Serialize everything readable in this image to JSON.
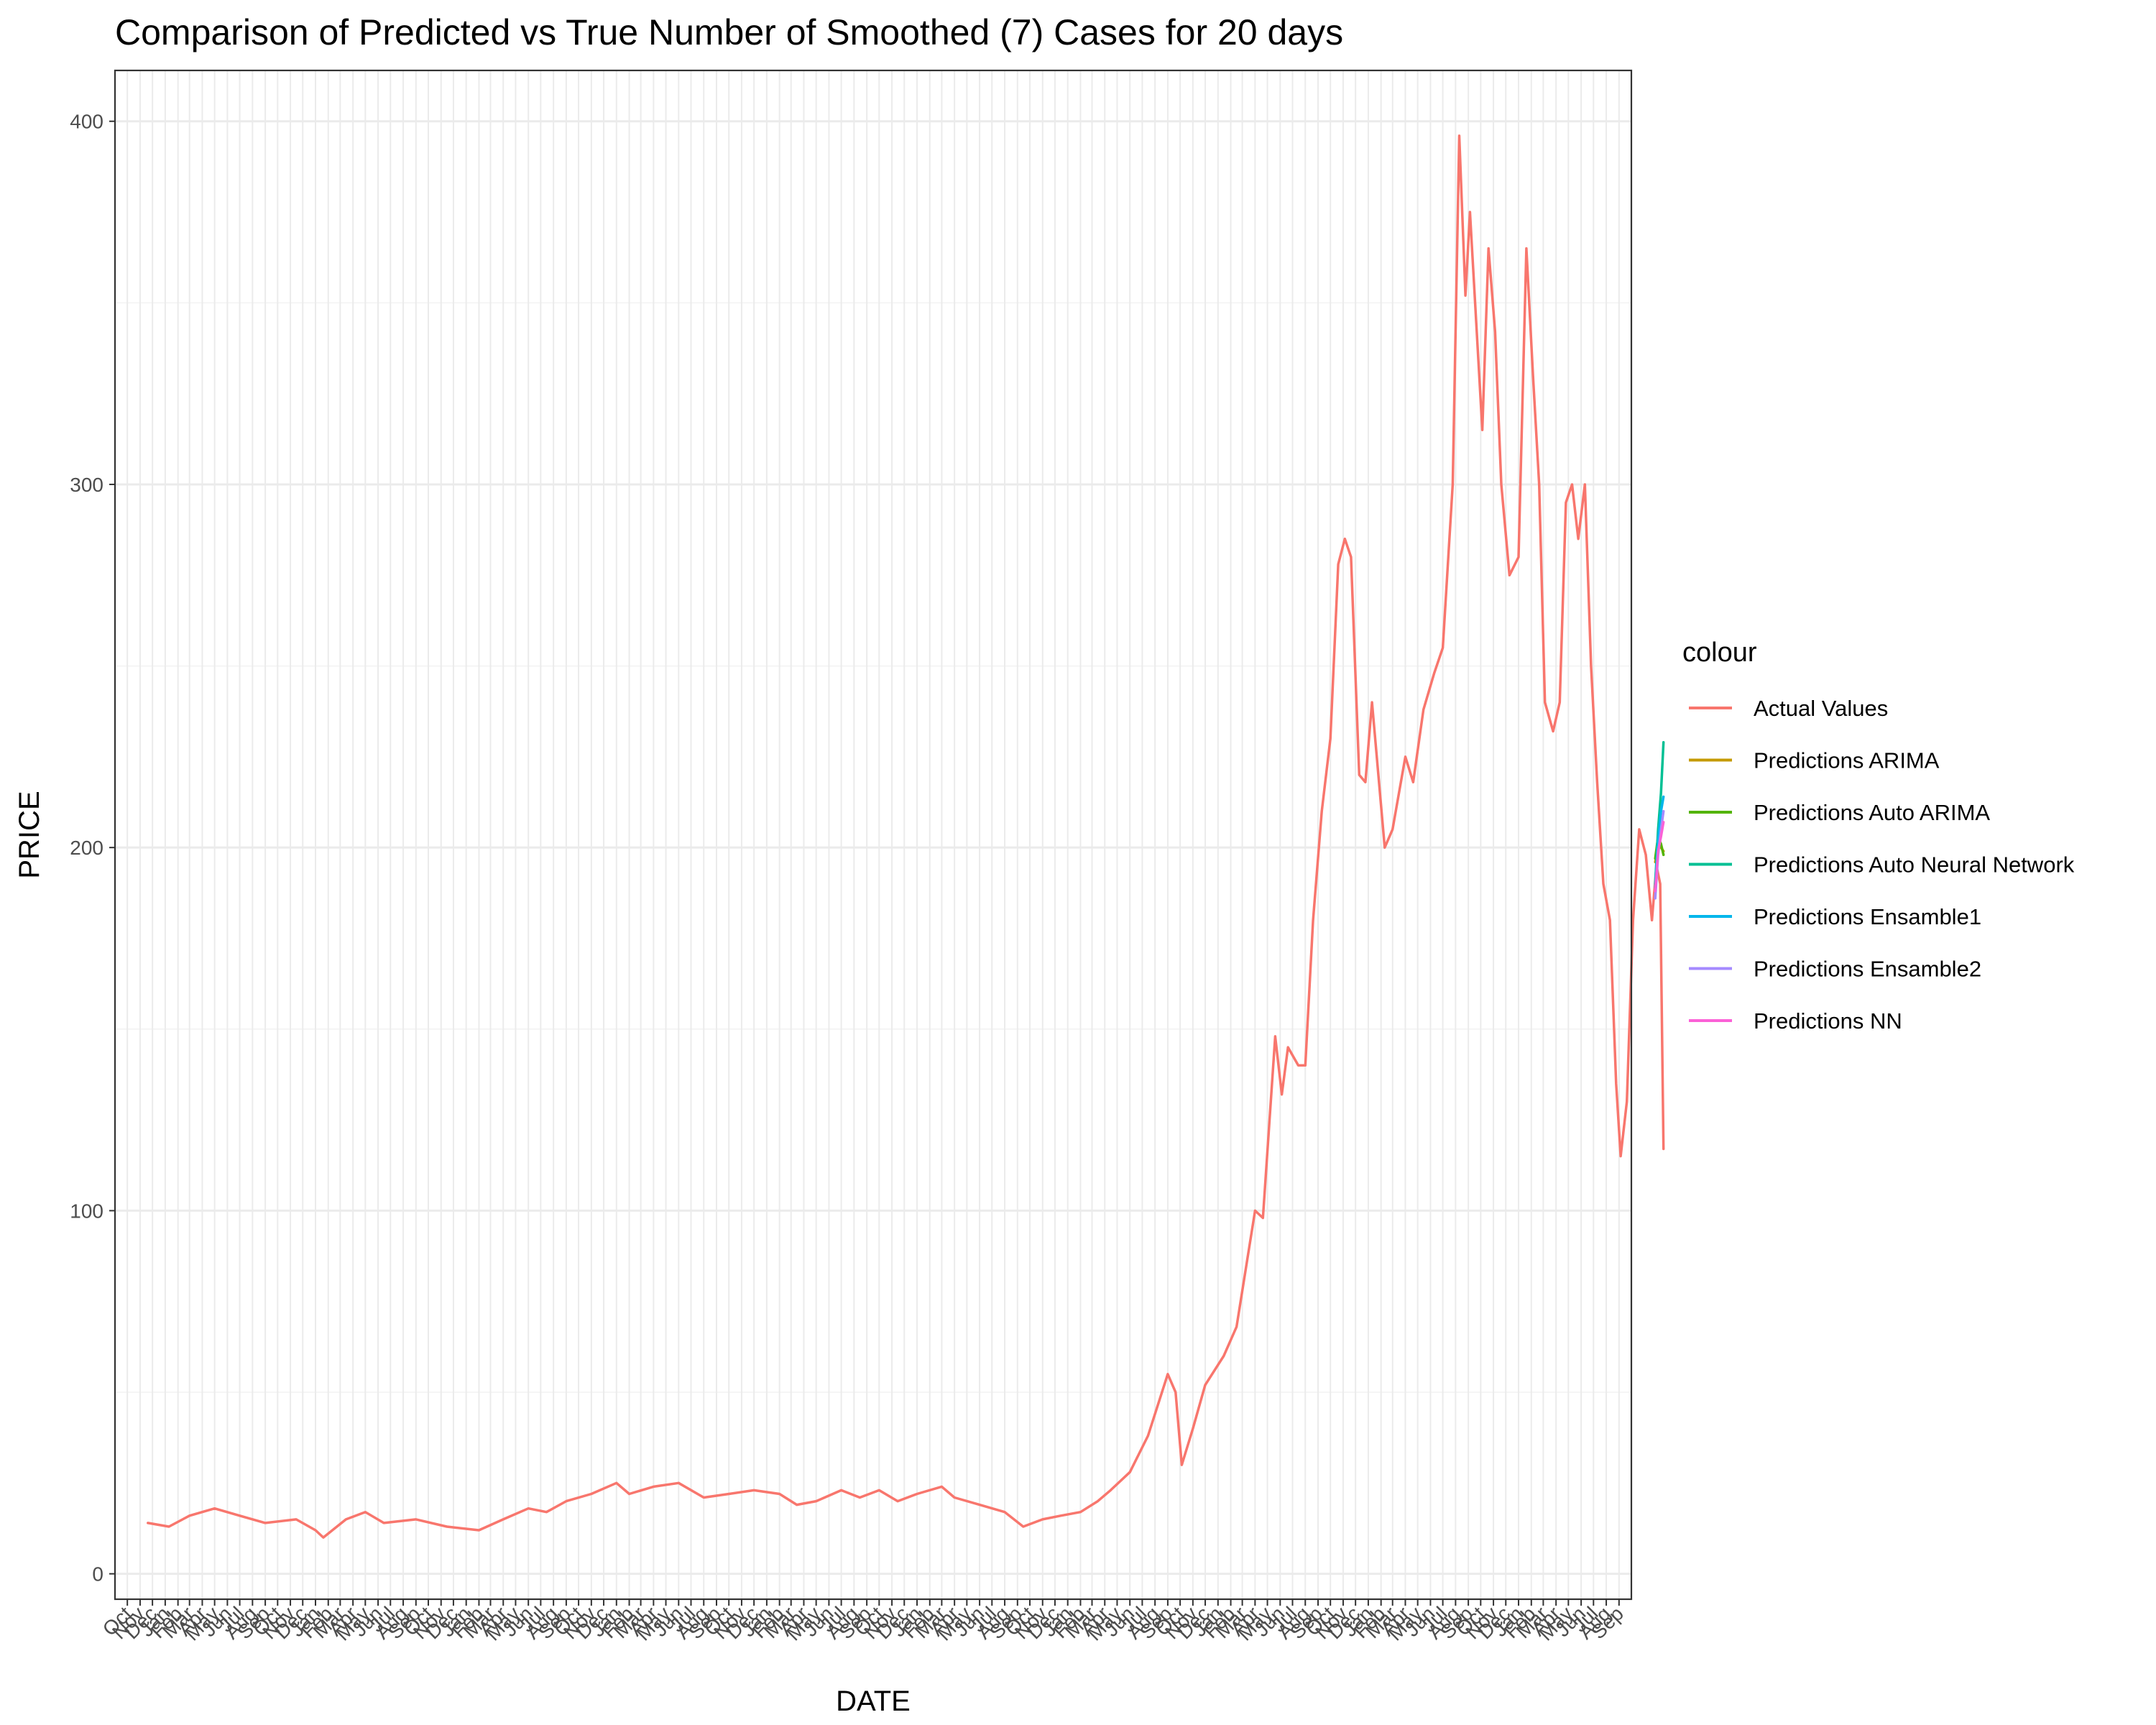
{
  "chart_data": {
    "type": "line",
    "title": "Comparison of Predicted vs True Number of Smoothed (7) Cases for 20 days",
    "xlabel": "DATE",
    "ylabel": "PRICE",
    "ylim": [
      -7,
      414
    ],
    "yticks": [
      0,
      100,
      200,
      300,
      400
    ],
    "grid": true,
    "xlim": [
      "2014-09-01",
      "2024-10-01"
    ],
    "x_tick_labels": [
      "Oct",
      "Nov",
      "Dec",
      "Jan",
      "Feb",
      "Mar",
      "Apr",
      "May",
      "Jun",
      "Jul",
      "Aug",
      "Sep",
      "Oct",
      "Nov",
      "Dec",
      "Jan",
      "Feb",
      "Mar",
      "Apr",
      "May",
      "Jun",
      "Jul",
      "Aug",
      "Sep",
      "Oct",
      "Nov",
      "Dec",
      "Jan",
      "Feb",
      "Mar",
      "Apr",
      "May",
      "Jun",
      "Jul",
      "Aug",
      "Sep",
      "Oct",
      "Nov",
      "Dec",
      "Jan",
      "Feb",
      "Mar",
      "Apr",
      "May",
      "Jun",
      "Jul",
      "Aug",
      "Sep",
      "Oct",
      "Nov",
      "Dec",
      "Jan",
      "Feb",
      "Mar",
      "Apr",
      "May",
      "Jun",
      "Jul",
      "Aug",
      "Sep",
      "Oct",
      "Nov",
      "Dec",
      "Jan",
      "Feb",
      "Mar",
      "Apr",
      "May",
      "Jun",
      "Jul",
      "Aug",
      "Sep",
      "Oct",
      "Nov",
      "Dec",
      "Jan",
      "Feb",
      "Mar",
      "Apr",
      "May",
      "Jun",
      "Jul",
      "Aug",
      "Sep",
      "Oct",
      "Nov",
      "Dec",
      "Jan",
      "Feb",
      "Mar",
      "Apr",
      "May",
      "Jun",
      "Jul",
      "Aug",
      "Sep",
      "Oct",
      "Nov",
      "Dec",
      "Jan",
      "Feb",
      "Mar",
      "Apr",
      "May",
      "Jun",
      "Jul",
      "Aug",
      "Sep",
      "Oct",
      "Nov",
      "Dec",
      "Jan",
      "Feb",
      "Mar",
      "Apr",
      "May",
      "Jun",
      "Jul",
      "Aug",
      "Sep"
    ],
    "legend": {
      "title": "colour",
      "position": "right",
      "entries": [
        "Actual Values",
        "Predictions ARIMA",
        "Predictions Auto ARIMA",
        "Predictions Auto Neural Network",
        "Predictions Ensamble1",
        "Predictions Ensamble2",
        "Predictions NN"
      ]
    },
    "series": [
      {
        "name": "Actual Values",
        "color": "#F8766D",
        "points": [
          [
            "2014-11-20",
            14
          ],
          [
            "2015-01-10",
            13
          ],
          [
            "2015-03-01",
            16
          ],
          [
            "2015-05-01",
            18
          ],
          [
            "2015-07-01",
            16
          ],
          [
            "2015-09-01",
            14
          ],
          [
            "2015-11-15",
            15
          ],
          [
            "2016-01-01",
            12
          ],
          [
            "2016-01-20",
            10
          ],
          [
            "2016-03-15",
            15
          ],
          [
            "2016-05-01",
            17
          ],
          [
            "2016-06-15",
            14
          ],
          [
            "2016-09-01",
            15
          ],
          [
            "2016-11-15",
            13
          ],
          [
            "2017-02-01",
            12
          ],
          [
            "2017-04-01",
            15
          ],
          [
            "2017-06-01",
            18
          ],
          [
            "2017-07-15",
            17
          ],
          [
            "2017-09-01",
            20
          ],
          [
            "2017-11-01",
            22
          ],
          [
            "2018-01-01",
            25
          ],
          [
            "2018-02-01",
            22
          ],
          [
            "2018-04-01",
            24
          ],
          [
            "2018-06-01",
            25
          ],
          [
            "2018-08-01",
            21
          ],
          [
            "2018-10-01",
            22
          ],
          [
            "2018-12-01",
            23
          ],
          [
            "2019-02-01",
            22
          ],
          [
            "2019-03-15",
            19
          ],
          [
            "2019-05-01",
            20
          ],
          [
            "2019-07-01",
            23
          ],
          [
            "2019-08-15",
            21
          ],
          [
            "2019-10-01",
            23
          ],
          [
            "2019-11-15",
            20
          ],
          [
            "2020-01-01",
            22
          ],
          [
            "2020-03-01",
            24
          ],
          [
            "2020-04-01",
            21
          ],
          [
            "2020-06-01",
            19
          ],
          [
            "2020-08-01",
            17
          ],
          [
            "2020-09-15",
            13
          ],
          [
            "2020-11-01",
            15
          ],
          [
            "2020-12-15",
            16
          ],
          [
            "2021-02-01",
            17
          ],
          [
            "2021-03-15",
            20
          ],
          [
            "2021-04-15",
            23
          ],
          [
            "2021-06-01",
            28
          ],
          [
            "2021-07-15",
            38
          ],
          [
            "2021-09-01",
            55
          ],
          [
            "2021-09-20",
            50
          ],
          [
            "2021-10-05",
            30
          ],
          [
            "2021-11-01",
            40
          ],
          [
            "2021-12-01",
            52
          ],
          [
            "2022-01-15",
            60
          ],
          [
            "2022-02-15",
            68
          ],
          [
            "2022-04-01",
            100
          ],
          [
            "2022-04-20",
            98
          ],
          [
            "2022-05-20",
            148
          ],
          [
            "2022-06-05",
            132
          ],
          [
            "2022-06-20",
            145
          ],
          [
            "2022-07-15",
            140
          ],
          [
            "2022-08-01",
            140
          ],
          [
            "2022-08-20",
            180
          ],
          [
            "2022-09-10",
            210
          ],
          [
            "2022-10-01",
            230
          ],
          [
            "2022-10-20",
            278
          ],
          [
            "2022-11-05",
            285
          ],
          [
            "2022-11-20",
            280
          ],
          [
            "2022-12-10",
            220
          ],
          [
            "2022-12-25",
            218
          ],
          [
            "2023-01-10",
            240
          ],
          [
            "2023-02-10",
            200
          ],
          [
            "2023-03-01",
            205
          ],
          [
            "2023-04-01",
            225
          ],
          [
            "2023-04-20",
            218
          ],
          [
            "2023-05-15",
            238
          ],
          [
            "2023-06-10",
            248
          ],
          [
            "2023-07-01",
            255
          ],
          [
            "2023-07-25",
            300
          ],
          [
            "2023-08-10",
            396
          ],
          [
            "2023-08-25",
            352
          ],
          [
            "2023-09-05",
            375
          ],
          [
            "2023-09-20",
            345
          ],
          [
            "2023-10-05",
            315
          ],
          [
            "2023-10-20",
            365
          ],
          [
            "2023-11-05",
            342
          ],
          [
            "2023-11-20",
            300
          ],
          [
            "2023-12-10",
            275
          ],
          [
            "2024-01-01",
            280
          ],
          [
            "2024-01-20",
            365
          ],
          [
            "2024-02-05",
            330
          ],
          [
            "2024-02-20",
            300
          ],
          [
            "2024-03-05",
            240
          ],
          [
            "2024-03-25",
            232
          ],
          [
            "2024-04-10",
            240
          ],
          [
            "2024-04-25",
            295
          ],
          [
            "2024-05-10",
            300
          ],
          [
            "2024-05-25",
            285
          ],
          [
            "2024-06-10",
            300
          ],
          [
            "2024-06-25",
            250
          ],
          [
            "2024-07-10",
            218
          ],
          [
            "2024-07-25",
            190
          ],
          [
            "2024-08-10",
            180
          ],
          [
            "2024-08-25",
            135
          ],
          [
            "2024-09-05",
            115
          ],
          [
            "2024-09-20",
            130
          ],
          [
            "2024-10-05",
            180
          ],
          [
            "2024-10-20",
            205
          ],
          [
            "2024-11-05",
            198
          ],
          [
            "2024-11-20",
            180
          ],
          [
            "2024-12-01",
            195
          ],
          [
            "2024-12-10",
            190
          ],
          [
            "2024-12-18",
            117
          ]
        ]
      },
      {
        "name": "Predictions ARIMA",
        "color": "#C49A00",
        "points": [
          [
            "2024-11-28",
            196
          ],
          [
            "2024-12-05",
            201
          ],
          [
            "2024-12-12",
            200
          ],
          [
            "2024-12-18",
            199
          ]
        ]
      },
      {
        "name": "Predictions Auto ARIMA",
        "color": "#53B400",
        "points": [
          [
            "2024-11-28",
            197
          ],
          [
            "2024-12-05",
            203
          ],
          [
            "2024-12-12",
            201
          ],
          [
            "2024-12-18",
            198
          ]
        ]
      },
      {
        "name": "Predictions Auto Neural Network",
        "color": "#00C094",
        "points": [
          [
            "2024-11-28",
            190
          ],
          [
            "2024-12-05",
            205
          ],
          [
            "2024-12-12",
            215
          ],
          [
            "2024-12-18",
            229
          ]
        ]
      },
      {
        "name": "Predictions Ensamble1",
        "color": "#00B6EB",
        "points": [
          [
            "2024-11-28",
            189
          ],
          [
            "2024-12-05",
            202
          ],
          [
            "2024-12-12",
            210
          ],
          [
            "2024-12-18",
            214
          ]
        ]
      },
      {
        "name": "Predictions Ensamble2",
        "color": "#A58AFF",
        "points": [
          [
            "2024-11-28",
            186
          ],
          [
            "2024-12-05",
            198
          ],
          [
            "2024-12-12",
            205
          ],
          [
            "2024-12-18",
            210
          ]
        ]
      },
      {
        "name": "Predictions NN",
        "color": "#FB61D7",
        "points": [
          [
            "2024-11-28",
            188
          ],
          [
            "2024-12-05",
            199
          ],
          [
            "2024-12-12",
            203
          ],
          [
            "2024-12-18",
            207
          ]
        ]
      }
    ]
  }
}
